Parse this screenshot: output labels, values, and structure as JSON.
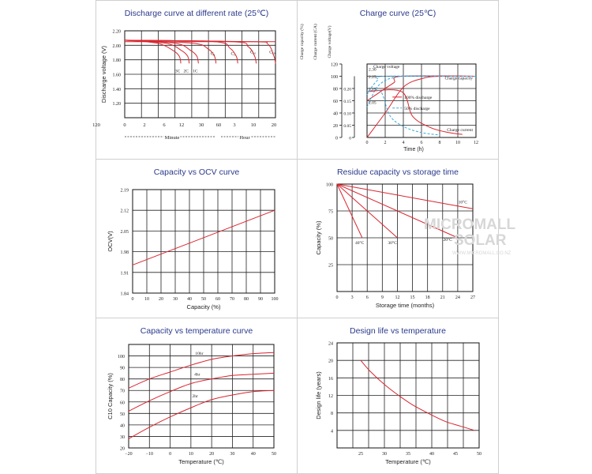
{
  "panels": [
    {
      "title": "Discharge curve at different rate (25℃)"
    },
    {
      "title": "Charge curve (25℃)"
    },
    {
      "title": "Capacity vs OCV curve"
    },
    {
      "title": "Residue capacity vs storage time"
    },
    {
      "title": "Capacity vs temperature curve"
    },
    {
      "title": "Design life vs temperature"
    }
  ],
  "watermark": {
    "brand": "MICROMALL",
    "sub": "SOLAR",
    "url": "WWW.MICROMALL.CO.NZ"
  },
  "chart_data": [
    {
      "type": "line",
      "title": "Discharge curve at different rate (25℃)",
      "ylabel": "Discharge voltage (V)",
      "ylim": [
        1.0,
        2.2
      ],
      "yticks": [
        1.2,
        1.4,
        1.6,
        1.8,
        2.0,
        2.2
      ],
      "ytick_labels": [
        "1.20",
        "1.40",
        "1.60",
        "1.80",
        "2.00",
        "2.20"
      ],
      "xticks_minute": [
        "0",
        "2",
        "6",
        "12",
        "30",
        "60"
      ],
      "xticks_hour": [
        "3",
        "10",
        "20"
      ],
      "xtick_end": "120",
      "x_segment_labels": [
        "Minute",
        "Hour"
      ],
      "series": [
        {
          "name": "3C",
          "label": "3C",
          "x_end": 6.7,
          "v": [
            2.07,
            2.03,
            1.93
          ]
        },
        {
          "name": "2C",
          "label": "2C",
          "x_end": 7.7,
          "v": [
            2.07,
            2.03,
            1.93
          ]
        },
        {
          "name": "1C",
          "label": "1C",
          "x_end": 8.8,
          "v": [
            2.07,
            2.03,
            1.93
          ]
        },
        {
          "name": "C3",
          "label": "C₃",
          "x_end": 10.9,
          "v": [
            2.07,
            2.03,
            1.95
          ]
        },
        {
          "name": "C5",
          "label": "C₅",
          "x_end": 13.5,
          "v": [
            2.07,
            2.05,
            1.96
          ]
        },
        {
          "name": "C10",
          "label": "C₁₀",
          "x_end": 15.7,
          "v": [
            2.07,
            2.05,
            1.98
          ]
        },
        {
          "name": "C20",
          "label": "C₂₀",
          "x_end": 18.0,
          "v": [
            2.07,
            2.05,
            2.02
          ]
        }
      ]
    },
    {
      "type": "line",
      "title": "Charge curve (25℃)",
      "xlabel": "Time (h)",
      "xlim": [
        0,
        12
      ],
      "xticks": [
        0,
        2,
        4,
        6,
        8,
        10,
        12
      ],
      "axis_titles": {
        "capacity": "Charge capacity (%)",
        "current": "Charge current (CA)",
        "voltage": "Charge voltage(V)"
      },
      "capacity_ticks": [
        "0",
        "20",
        "40",
        "60",
        "80",
        "100",
        "120"
      ],
      "current_ticks": [
        "0",
        "0.05",
        "0.10",
        "0.15",
        "0.20"
      ],
      "voltage_ticks": [
        "2.05",
        "2.15",
        "2.25",
        "2.30"
      ],
      "annotations": [
        "Charge voltage",
        "Charge capacity",
        "Charge current"
      ],
      "legend": [
        "100% discharge",
        "50% discharge"
      ],
      "series": [
        {
          "name": "Charge voltage (100% discharge)",
          "x": [
            0,
            1,
            2,
            3,
            3.8,
            12
          ],
          "y": [
            60,
            70,
            80,
            90,
            100,
            100
          ]
        },
        {
          "name": "Charge voltage (50% discharge)",
          "x": [
            0,
            0.5,
            1.2,
            2,
            12
          ],
          "y": [
            70,
            82,
            94,
            100,
            100
          ]
        },
        {
          "name": "Charge capacity (100% discharge)",
          "x": [
            0,
            2,
            4,
            6,
            8,
            12
          ],
          "y": [
            0,
            40,
            82,
            96,
            100,
            100
          ]
        },
        {
          "name": "Charge capacity (50% discharge)",
          "x": [
            0,
            1,
            2,
            3,
            4,
            12
          ],
          "y": [
            50,
            80,
            93,
            98,
            100,
            100
          ]
        },
        {
          "name": "Charge current (100% discharge)",
          "x": [
            0,
            3.8,
            5,
            7,
            9,
            10.5
          ],
          "y": [
            75,
            75,
            35,
            16,
            8,
            5
          ]
        },
        {
          "name": "Charge current (50% discharge)",
          "x": [
            0,
            1.5,
            2.5,
            4,
            6,
            8
          ],
          "y": [
            75,
            75,
            36,
            18,
            8,
            4
          ]
        }
      ]
    },
    {
      "type": "line",
      "title": "Capacity vs OCV curve",
      "xlabel": "Capacity (%)",
      "ylabel": "OCV(V)",
      "xlim": [
        0,
        100
      ],
      "xticks": [
        0,
        10,
        20,
        30,
        40,
        50,
        60,
        70,
        80,
        90,
        100
      ],
      "ylim": [
        1.84,
        2.19
      ],
      "yticks": [
        1.84,
        1.91,
        1.98,
        2.05,
        2.12,
        2.19
      ],
      "ytick_labels": [
        "1.84",
        "1.91",
        "1.98",
        "2.05",
        "2.12",
        "2.19"
      ],
      "series": [
        {
          "name": "OCV",
          "x": [
            0,
            100
          ],
          "y": [
            1.935,
            2.12
          ]
        }
      ]
    },
    {
      "type": "line",
      "title": "Residue capacity vs storage time",
      "xlabel": "Storage time (months)",
      "ylabel": "Capacity (%)",
      "xlim": [
        0,
        27
      ],
      "xticks": [
        0,
        3,
        6,
        9,
        12,
        15,
        18,
        21,
        24,
        27
      ],
      "ylim": [
        0,
        100
      ],
      "yticks": [
        25,
        50,
        75,
        100
      ],
      "series": [
        {
          "name": "40℃",
          "label": "40°C",
          "x": [
            0,
            5
          ],
          "y": [
            100,
            50
          ]
        },
        {
          "name": "30℃",
          "label": "30°C",
          "x": [
            0,
            12
          ],
          "y": [
            100,
            50
          ]
        },
        {
          "name": "20℃",
          "label": "20°C",
          "x": [
            0,
            24
          ],
          "y": [
            100,
            50
          ]
        },
        {
          "name": "10℃",
          "label": "10°C",
          "x": [
            0,
            27
          ],
          "y": [
            100,
            77
          ]
        }
      ]
    },
    {
      "type": "line",
      "title": "Capacity vs temperature curve",
      "xlabel": "Temperature (℃)",
      "ylabel": "C10 Capacity (%)",
      "xlim": [
        -20,
        50
      ],
      "xticks": [
        -20,
        -10,
        0,
        10,
        20,
        30,
        40,
        50
      ],
      "ylim": [
        20,
        110
      ],
      "yticks": [
        20,
        30,
        40,
        50,
        60,
        70,
        80,
        90,
        100
      ],
      "series": [
        {
          "name": "10hr",
          "label": "10hr",
          "x": [
            -20,
            -10,
            0,
            10,
            20,
            30,
            40,
            50
          ],
          "y": [
            72,
            80,
            86,
            92,
            97,
            100,
            102,
            103
          ]
        },
        {
          "name": "4hr",
          "label": "4hr",
          "x": [
            -20,
            -10,
            0,
            10,
            20,
            30,
            40,
            50
          ],
          "y": [
            52,
            61,
            69,
            76,
            80,
            83,
            84,
            85
          ]
        },
        {
          "name": "2hr",
          "label": "2hr",
          "x": [
            -20,
            -10,
            0,
            10,
            20,
            30,
            40,
            50
          ],
          "y": [
            28,
            38,
            47,
            55,
            62,
            66,
            69,
            70
          ]
        }
      ]
    },
    {
      "type": "line",
      "title": "Design life vs temperature",
      "xlabel": "Temperature (℃)",
      "ylabel": "Design life (years)",
      "xlim": [
        20,
        50
      ],
      "xticks": [
        25,
        30,
        35,
        40,
        45,
        50
      ],
      "ylim": [
        0,
        24
      ],
      "yticks": [
        4,
        8,
        12,
        16,
        20,
        24
      ],
      "series": [
        {
          "name": "Design life",
          "x": [
            25,
            27,
            30,
            33,
            36,
            40,
            43,
            46,
            49
          ],
          "y": [
            20,
            17.5,
            14.5,
            12,
            9.8,
            7.5,
            6,
            5,
            4
          ]
        }
      ]
    }
  ]
}
